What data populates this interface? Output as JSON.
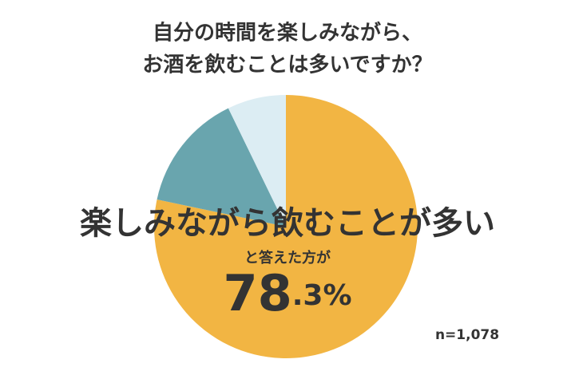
{
  "chart_data": {
    "type": "pie",
    "title": [
      "自分の時間を楽しみながら、",
      "お酒を飲むことは多いですか？"
    ],
    "categories": [
      null,
      null,
      null
    ],
    "values": [
      78.3,
      14.5,
      7.2
    ],
    "value_labels": [
      "78.3%",
      null,
      null
    ],
    "colors": [
      "#f2b543",
      "#69a5ae",
      "#dcedf3"
    ],
    "annotations": [
      "楽しみながら飲むことが多い",
      "と答えた方が"
    ],
    "note": "n=1,078"
  }
}
